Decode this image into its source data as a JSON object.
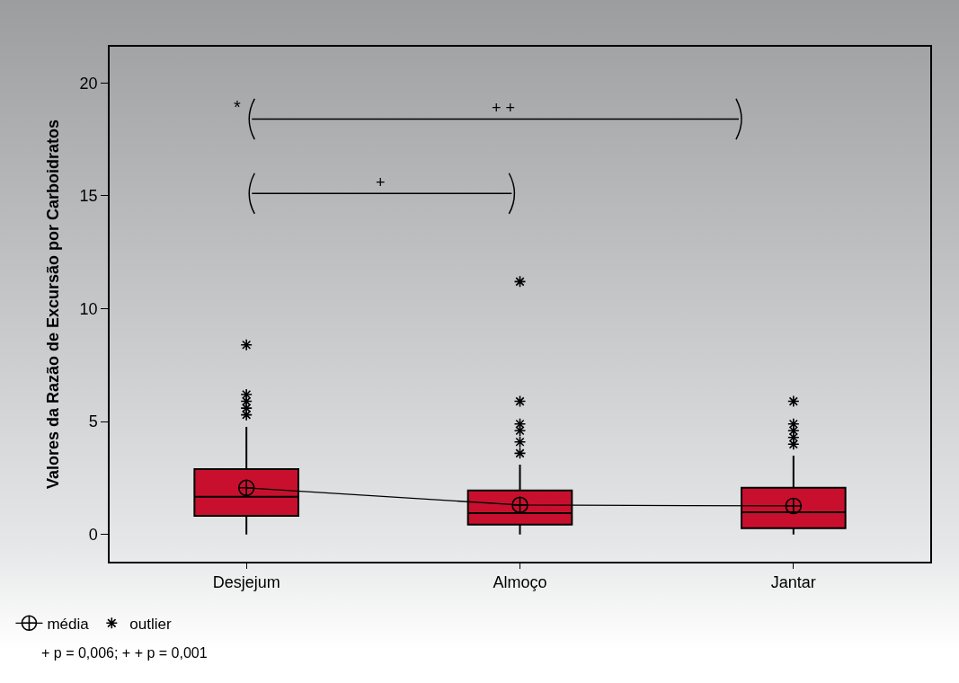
{
  "chart_data": {
    "type": "box",
    "ylabel": "Valores da Razão de Excursão por Carboidratos",
    "categories": [
      "Desjejum",
      "Almoço",
      "Jantar"
    ],
    "ylim": [
      -1.2,
      21.6
    ],
    "yticks": [
      0,
      5,
      10,
      15,
      20
    ],
    "grid": false,
    "legend": "bottom left",
    "series": [
      {
        "color": "#c8102e",
        "boxes": [
          {
            "low": 0,
            "q1": 0.83,
            "median": 1.67,
            "q3": 2.9,
            "high": 4.77
          },
          {
            "low": 0,
            "q1": 0.44,
            "median": 0.95,
            "q3": 1.95,
            "high": 3.1
          },
          {
            "low": 0,
            "q1": 0.28,
            "median": 0.99,
            "q3": 2.07,
            "high": 3.5
          }
        ]
      },
      {
        "type": "line",
        "name": "média",
        "color": "#000000",
        "marker": "cross",
        "x": [
          "Desjejum",
          "Almoço",
          "Jantar"
        ],
        "values": [
          2.07,
          1.31,
          1.27
        ]
      },
      {
        "type": "scatter",
        "name": "outlier",
        "color": "#000000",
        "marker": "cross",
        "x": [
          "Desjejum",
          "Desjejum",
          "Desjejum",
          "Desjejum",
          "Desjejum",
          "Almoço",
          "Almoço",
          "Almoço",
          "Almoço",
          "Almoço",
          "Almoço",
          "Jantar",
          "Jantar",
          "Jantar",
          "Jantar",
          "Jantar"
        ],
        "values": [
          8.4,
          6.2,
          5.9,
          5.6,
          5.3,
          11.2,
          5.9,
          4.9,
          4.6,
          4.1,
          3.6,
          5.9,
          4.9,
          4.6,
          4.3,
          4.0
        ]
      }
    ],
    "annotations": [
      "*",
      "+ +",
      "+",
      "+ p = 0,006; + + p = 0,001"
    ]
  }
}
